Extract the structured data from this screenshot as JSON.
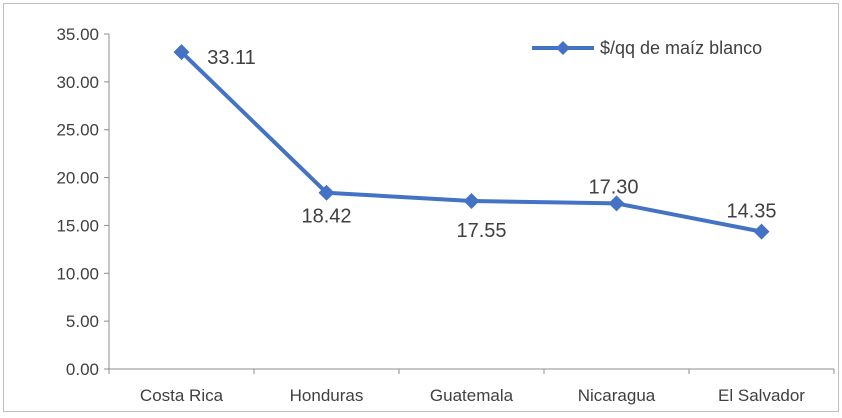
{
  "chart_data": {
    "type": "line",
    "categories": [
      "Costa Rica",
      "Honduras",
      "Guatemala",
      "Nicaragua",
      "El Salvador"
    ],
    "series": [
      {
        "name": "$/qq de maíz blanco",
        "values": [
          33.11,
          18.42,
          17.55,
          17.3,
          14.35
        ],
        "data_labels": [
          "33.11",
          "18.42",
          "17.55",
          "17.30",
          "14.35"
        ]
      }
    ],
    "yticks": [
      "0.00",
      "5.00",
      "10.00",
      "15.00",
      "20.00",
      "25.00",
      "30.00",
      "35.00"
    ],
    "ylim": [
      0,
      35
    ],
    "grid": false,
    "legend_position": "top-right",
    "series_color": "#4472c4"
  }
}
